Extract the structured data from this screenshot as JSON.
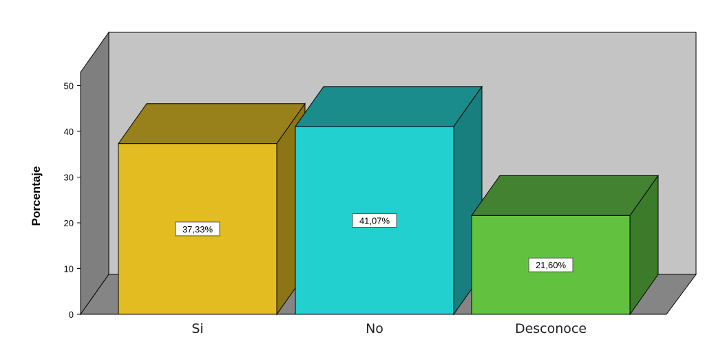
{
  "chart_data": {
    "type": "bar",
    "style": "3d",
    "categories": [
      "Si",
      "No",
      "Desconoce"
    ],
    "values": [
      37.33,
      41.07,
      21.6
    ],
    "data_labels": [
      "37,33%",
      "41,07%",
      "21,60%"
    ],
    "ylabel": "Porcentaje",
    "ylim": [
      0,
      50
    ],
    "yticks": [
      "0",
      "10",
      "20",
      "30",
      "40",
      "50"
    ],
    "grid": false,
    "legend": "none",
    "colors": {
      "bars": [
        "#e3bc22",
        "#22d0cf",
        "#62c23f"
      ],
      "bar_tops": [
        "#98801a",
        "#1a8c8b",
        "#438230"
      ],
      "bar_sides": [
        "#8b7514",
        "#187f7e",
        "#3b7b2a"
      ],
      "wall": "#c4c4c4",
      "side_wall": "#7f7f7f",
      "floor": "#858585"
    }
  }
}
